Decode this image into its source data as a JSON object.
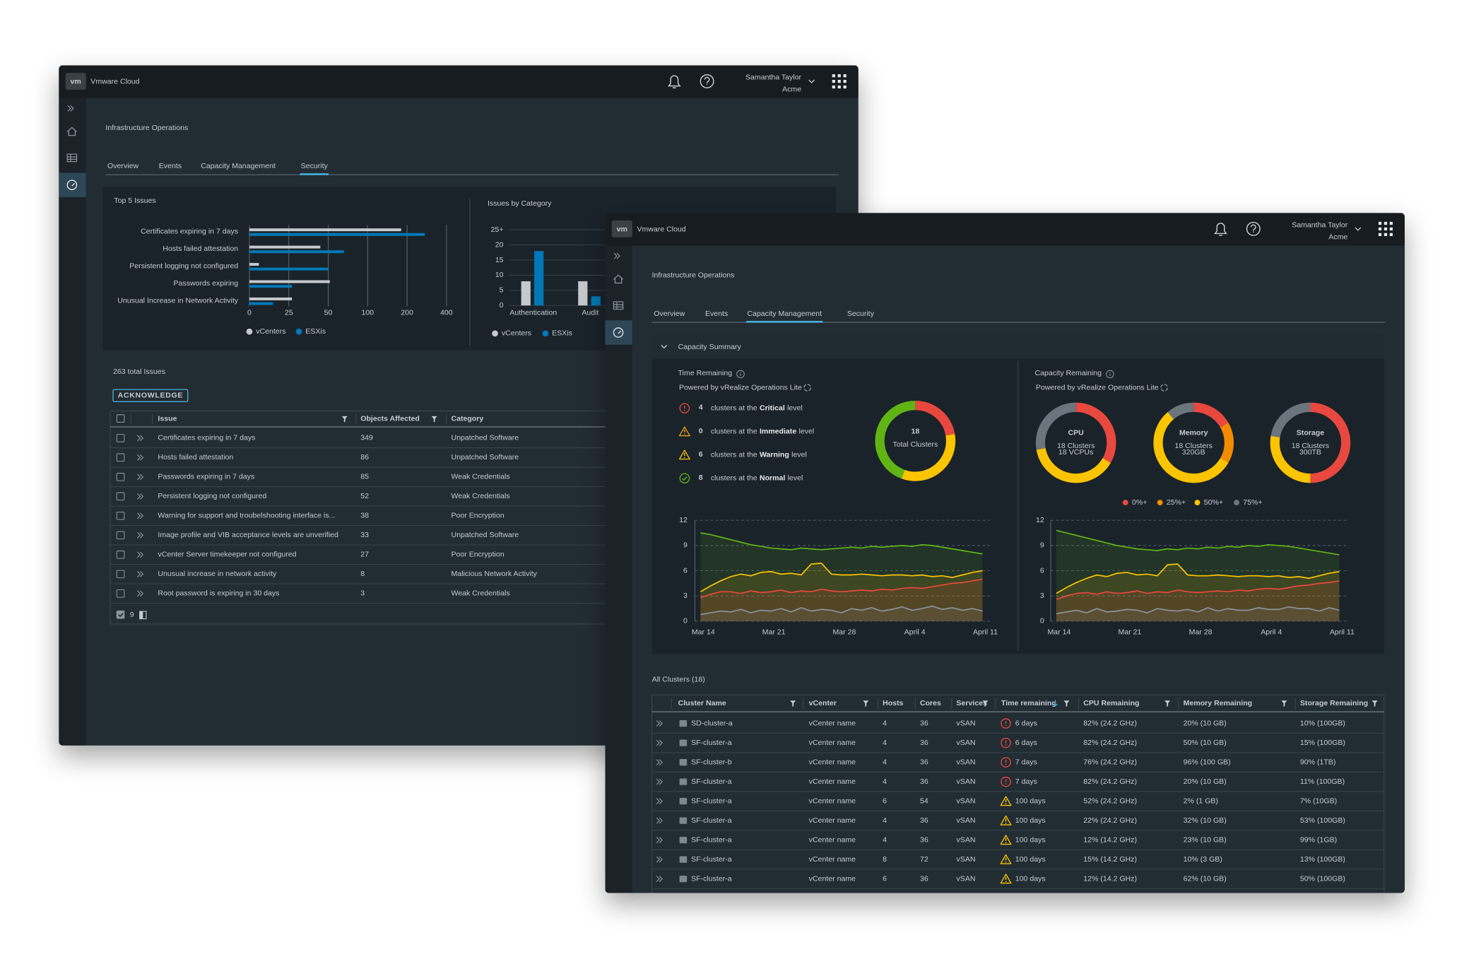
{
  "back": {
    "logo": "vm",
    "brand": "Vmware Cloud",
    "user": "Samantha Taylor",
    "org": "Acme",
    "title": "Infrastructure Operations",
    "tabs": [
      "Overview",
      "Events",
      "Capacity Management",
      "Security"
    ],
    "active_tab": 3,
    "top_issues": {
      "type": "bar",
      "title": "Top 5 Issues",
      "categories": [
        "Certificates expiring in 7 days",
        "Hosts failed attestation",
        "Persistent logging not configured",
        "Passwords expiring",
        "Unusual Increase in Network Activity"
      ],
      "series": [
        {
          "name": "vCenters",
          "color": "#c4c9ce",
          "values": [
            185,
            45,
            6,
            52,
            27
          ]
        },
        {
          "name": "ESXis",
          "color": "#0079b8",
          "values": [
            290,
            70,
            50,
            27,
            15
          ]
        }
      ],
      "xticks": [
        0,
        25,
        50,
        100,
        200,
        400
      ]
    },
    "issues_by_category": {
      "type": "bar",
      "title": "Issues by Category",
      "categories": [
        "Authentication",
        "Audit"
      ],
      "series": [
        {
          "name": "vCenters",
          "color": "#c4c9ce",
          "values": [
            8,
            8
          ]
        },
        {
          "name": "ESXis",
          "color": "#0079b8",
          "values": [
            18,
            3
          ]
        }
      ],
      "ylim": [
        0,
        25
      ],
      "yticks": [
        0,
        5,
        10,
        15,
        20,
        {
          "value": 25,
          "label": "25+"
        }
      ]
    },
    "issues": {
      "title": "263 total Issues",
      "button": "ACKNOWLEDGE",
      "columns": [
        "Issue",
        "Objects Affected",
        "Category"
      ],
      "rows": [
        [
          "Certificates expiring in 7 days",
          349,
          "Unpatched Software"
        ],
        [
          "Hosts failed attestation",
          86,
          "Unpatched Software"
        ],
        [
          "Passwords expiring in 7 days",
          85,
          "Weak Credentials"
        ],
        [
          "Persistent logging not configured",
          52,
          "Weak Credentials"
        ],
        [
          "Warning for support and troubelshooting interface is...",
          38,
          "Poor Encryption"
        ],
        [
          "Image profile and VIB acceptance levels are unverified",
          33,
          "Unpatched Software"
        ],
        [
          "vCenter Server timekeeper not configured",
          27,
          "Poor Encryption"
        ],
        [
          "Unusual increase in network activity",
          8,
          "Malicious Network Activity"
        ],
        [
          "Root password is expiring in 30 days",
          3,
          "Weak Credentials"
        ]
      ],
      "footer_count": 9
    }
  },
  "front": {
    "logo": "vm",
    "brand": "Vmware Cloud",
    "user": "Samantha Taylor",
    "org": "Acme",
    "title": "Infrastructure Operations",
    "tabs": [
      "Overview",
      "Events",
      "Capacity Management",
      "Security"
    ],
    "active_tab": 2,
    "summary": {
      "title": "Capacity Summary",
      "time_remaining": {
        "title": "Time Remaining",
        "powered_by": "Powered by vRealize Operations Lite",
        "levels": [
          {
            "count": 4,
            "prefix": "clusters at the",
            "level": "Critical",
            "suffix": "level",
            "icon": "critical",
            "color": "#e9483f"
          },
          {
            "count": 0,
            "prefix": "clusters at the",
            "level": "Immediate",
            "suffix": "level",
            "icon": "warning",
            "color": "#f0a30a"
          },
          {
            "count": 6,
            "prefix": "clusters at the",
            "level": "Warning",
            "suffix": "level",
            "icon": "warning",
            "color": "#fac400"
          },
          {
            "count": 8,
            "prefix": "clusters at the",
            "level": "Normal",
            "suffix": "level",
            "icon": "normal",
            "color": "#60b515"
          }
        ],
        "donut": {
          "value": 18,
          "label": "Total Clusters"
        },
        "chart": {
          "type": "area",
          "ylim": [
            0,
            12
          ],
          "yticks": [
            0,
            3,
            6,
            9,
            12
          ],
          "categories": [
            "Mar 14",
            null,
            null,
            null,
            null,
            null,
            null,
            "Mar 21",
            null,
            null,
            null,
            null,
            null,
            null,
            "Mar 28",
            null,
            null,
            null,
            null,
            null,
            null,
            "April 4",
            null,
            null,
            null,
            null,
            null,
            null,
            "April 11"
          ],
          "series": [
            {
              "color": "#60b515",
              "values": [
                10.5,
                10.3,
                10.0,
                9.7,
                9.4,
                9.1,
                8.9,
                8.7,
                8.6,
                8.5,
                8.7,
                8.6,
                8.5,
                8.6,
                8.7,
                8.8,
                8.7,
                8.9,
                8.8,
                8.9,
                9.0,
                8.9,
                9.1,
                9.0,
                8.8,
                8.6,
                8.4,
                8.2,
                8.0
              ]
            },
            {
              "color": "#fac400",
              "values": [
                3.5,
                4.2,
                4.8,
                5.3,
                5.6,
                5.4,
                5.8,
                5.9,
                5.6,
                5.7,
                5.5,
                6.8,
                6.9,
                5.6,
                5.5,
                5.5,
                5.6,
                5.5,
                5.4,
                5.5,
                5.5,
                5.4,
                5.5,
                5.3,
                5.4,
                5.2,
                5.5,
                5.8,
                6.0
              ]
            },
            {
              "color": "#e9483f",
              "values": [
                2.8,
                3.2,
                3.5,
                3.5,
                3.3,
                3.6,
                3.4,
                3.5,
                3.7,
                3.4,
                3.6,
                3.5,
                3.8,
                3.6,
                3.5,
                3.6,
                3.7,
                3.6,
                3.8,
                3.7,
                3.9,
                4.0,
                3.9,
                4.1,
                4.3,
                4.5,
                4.6,
                4.8,
                5.0
              ]
            },
            {
              "color": "#8a939b",
              "values": [
                0.8,
                1.0,
                1.2,
                1.1,
                1.4,
                1.0,
                1.3,
                1.2,
                1.5,
                1.1,
                1.6,
                1.2,
                1.4,
                1.3,
                1.0,
                1.5,
                1.3,
                1.6,
                1.2,
                1.4,
                1.7,
                1.3,
                1.5,
                1.8,
                1.4,
                1.6,
                1.3,
                1.5,
                1.2
              ]
            }
          ]
        }
      },
      "capacity_remaining": {
        "title": "Capacity Remaining",
        "powered_by": "Powered by vRealize Operations Lite",
        "legend": [
          {
            "name": "0%+",
            "color": "#e9483f"
          },
          {
            "name": "25%+",
            "color": "#f38b00"
          },
          {
            "name": "50%+",
            "color": "#fac400"
          },
          {
            "name": "75%+",
            "color": "#6c757d"
          }
        ],
        "donuts": [
          {
            "name": "CPU",
            "clusters": "18 Clusters",
            "detail": "18 VCPUs",
            "values": [
              6,
              0,
              7,
              5
            ]
          },
          {
            "name": "Memory",
            "clusters": "18 Clusters",
            "detail": "320GB",
            "values": [
              3,
              3,
              10,
              2
            ]
          },
          {
            "name": "Storage",
            "clusters": "18 Clusters",
            "detail": "300TB",
            "values": [
              9,
              0,
              5,
              4
            ]
          }
        ],
        "chart": {
          "type": "area",
          "ylim": [
            0,
            12
          ],
          "yticks": [
            0,
            3,
            6,
            9,
            12
          ],
          "categories": [
            "Mar 14",
            null,
            null,
            null,
            null,
            null,
            null,
            "Mar 21",
            null,
            null,
            null,
            null,
            null,
            null,
            "Mar 28",
            null,
            null,
            null,
            null,
            null,
            null,
            "April 4",
            null,
            null,
            null,
            null,
            null,
            null,
            "April 11"
          ],
          "series": [
            {
              "color": "#60b515",
              "values": [
                10.8,
                10.5,
                10.2,
                9.9,
                9.6,
                9.3,
                9.0,
                8.8,
                8.6,
                8.5,
                8.4,
                8.6,
                8.5,
                8.7,
                8.6,
                8.8,
                8.7,
                8.9,
                8.8,
                9.0,
                8.9,
                9.1,
                9.0,
                8.9,
                8.7,
                8.5,
                8.3,
                8.1,
                7.9
              ]
            },
            {
              "color": "#fac400",
              "values": [
                3.3,
                4.0,
                4.6,
                5.1,
                5.5,
                5.3,
                5.7,
                5.8,
                5.5,
                5.6,
                5.4,
                6.7,
                6.8,
                5.5,
                5.4,
                5.4,
                5.5,
                5.4,
                5.3,
                5.4,
                5.4,
                5.3,
                5.4,
                5.2,
                5.3,
                5.1,
                5.4,
                5.7,
                5.9
              ]
            },
            {
              "color": "#e9483f",
              "values": [
                2.6,
                3.0,
                3.3,
                3.4,
                3.2,
                3.5,
                3.3,
                3.4,
                3.6,
                3.3,
                3.5,
                3.4,
                3.7,
                3.5,
                3.4,
                3.5,
                3.6,
                3.5,
                3.7,
                3.6,
                3.8,
                3.9,
                3.8,
                4.0,
                4.2,
                4.3,
                4.5,
                4.6,
                4.8
              ]
            },
            {
              "color": "#8a939b",
              "values": [
                0.9,
                1.1,
                1.3,
                1.0,
                1.5,
                1.1,
                1.2,
                1.4,
                1.3,
                1.0,
                1.5,
                1.3,
                1.2,
                1.4,
                1.1,
                1.6,
                1.2,
                1.5,
                1.3,
                1.3,
                1.6,
                1.4,
                1.4,
                1.7,
                1.5,
                1.5,
                1.2,
                1.6,
                1.3
              ]
            }
          ]
        }
      }
    },
    "clusters": {
      "title": "All Clusters (18)",
      "columns": [
        "Cluster Name",
        "vCenter",
        "Hosts",
        "Cores",
        "Services",
        "Time remaining",
        "CPU Remaining",
        "Memory Remaining",
        "Storage Remaining"
      ],
      "level_colors": {
        "critical": "#e9483f",
        "warning": "#fac400"
      },
      "rows": [
        {
          "level": "critical",
          "cells": [
            "SD-cluster-a",
            "vCenter name",
            4,
            36,
            "vSAN",
            "6 days",
            "82% (24.2 GHz)",
            "20% (10 GB)",
            "10% (100GB)"
          ]
        },
        {
          "level": "critical",
          "cells": [
            "SF-cluster-a",
            "vCenter name",
            4,
            36,
            "vSAN",
            "6 days",
            "82% (24.2 GHz)",
            "50% (10 GB)",
            "15% (100GB)"
          ]
        },
        {
          "level": "critical",
          "cells": [
            "SF-cluster-b",
            "vCenter name",
            4,
            36,
            "vSAN",
            "7 days",
            "76% (24.2 GHz)",
            "96% (100 GB)",
            "90% (1TB)"
          ]
        },
        {
          "level": "critical",
          "cells": [
            "SF-cluster-a",
            "vCenter name",
            4,
            36,
            "vSAN",
            "7 days",
            "82% (24.2 GHz)",
            "20% (10 GB)",
            "11% (100GB)"
          ]
        },
        {
          "level": "warning",
          "cells": [
            "SF-cluster-a",
            "vCenter name",
            6,
            54,
            "vSAN",
            "100 days",
            "52% (24.2 GHz)",
            "2% (1 GB)",
            "7% (10GB)"
          ]
        },
        {
          "level": "warning",
          "cells": [
            "SF-cluster-a",
            "vCenter name",
            4,
            36,
            "vSAN",
            "100 days",
            "22% (24.2 GHz)",
            "32% (10 GB)",
            "53% (100GB)"
          ]
        },
        {
          "level": "warning",
          "cells": [
            "SF-cluster-a",
            "vCenter name",
            4,
            36,
            "vSAN",
            "100 days",
            "12% (14.2 GHz)",
            "23% (10 GB)",
            "99% (1GB)"
          ]
        },
        {
          "level": "warning",
          "cells": [
            "SF-cluster-a",
            "vCenter name",
            8,
            72,
            "vSAN",
            "100 days",
            "15% (14.2 GHz)",
            "10% (3 GB)",
            "13% (100GB)"
          ]
        },
        {
          "level": "warning",
          "cells": [
            "SF-cluster-a",
            "vCenter name",
            6,
            36,
            "vSAN",
            "100 days",
            "12% (14.2 GHz)",
            "62% (10 GB)",
            "50% (100GB)"
          ]
        }
      ]
    }
  }
}
